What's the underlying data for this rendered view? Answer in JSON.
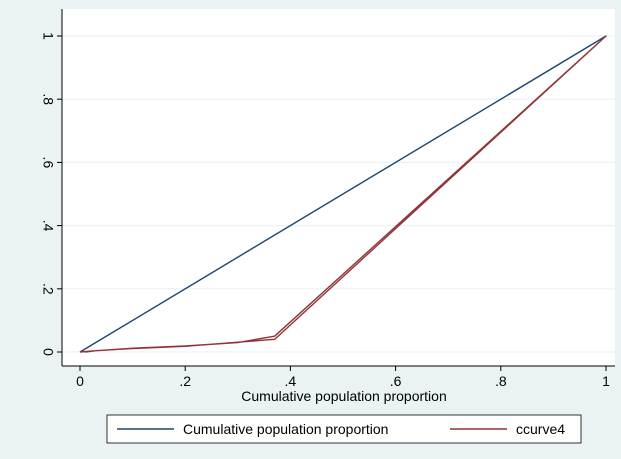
{
  "chart_data": {
    "type": "line",
    "title": "",
    "xlabel": "Cumulative population proportion",
    "ylabel": "",
    "xlim": [
      0,
      1
    ],
    "ylim": [
      0,
      1
    ],
    "x_ticks": [
      {
        "value": 0,
        "label": "0"
      },
      {
        "value": 0.2,
        "label": ".2"
      },
      {
        "value": 0.4,
        "label": ".4"
      },
      {
        "value": 0.6,
        "label": ".6"
      },
      {
        "value": 0.8,
        "label": ".8"
      },
      {
        "value": 1,
        "label": "1"
      }
    ],
    "y_ticks": [
      {
        "value": 0,
        "label": "0"
      },
      {
        "value": 0.2,
        "label": ".2"
      },
      {
        "value": 0.4,
        "label": ".4"
      },
      {
        "value": 0.6,
        "label": ".6"
      },
      {
        "value": 0.8,
        "label": ".8"
      },
      {
        "value": 1,
        "label": "1"
      }
    ],
    "grid": "horizontal",
    "legend_position": "bottom",
    "colors": {
      "plot_region_bg": "#ffffff",
      "outer_bg": "#eaf2f3",
      "grid": "#eaf2f3",
      "axis": "#000000"
    },
    "series": [
      {
        "name": "Cumulative population proportion",
        "color": "#1a476f",
        "x": [
          0,
          1
        ],
        "y": [
          0,
          1
        ]
      },
      {
        "name": "ccurve4",
        "color": "#90353b",
        "x": [
          0,
          0.02,
          0.1,
          0.2,
          0.3,
          0.37,
          1,
          0.37,
          0.3,
          0.2,
          0.1,
          0.03,
          0.01
        ],
        "y": [
          0,
          0.003,
          0.012,
          0.019,
          0.03,
          0.05,
          1,
          0.04,
          0.031,
          0.018,
          0.011,
          0.004,
          0
        ]
      }
    ]
  }
}
